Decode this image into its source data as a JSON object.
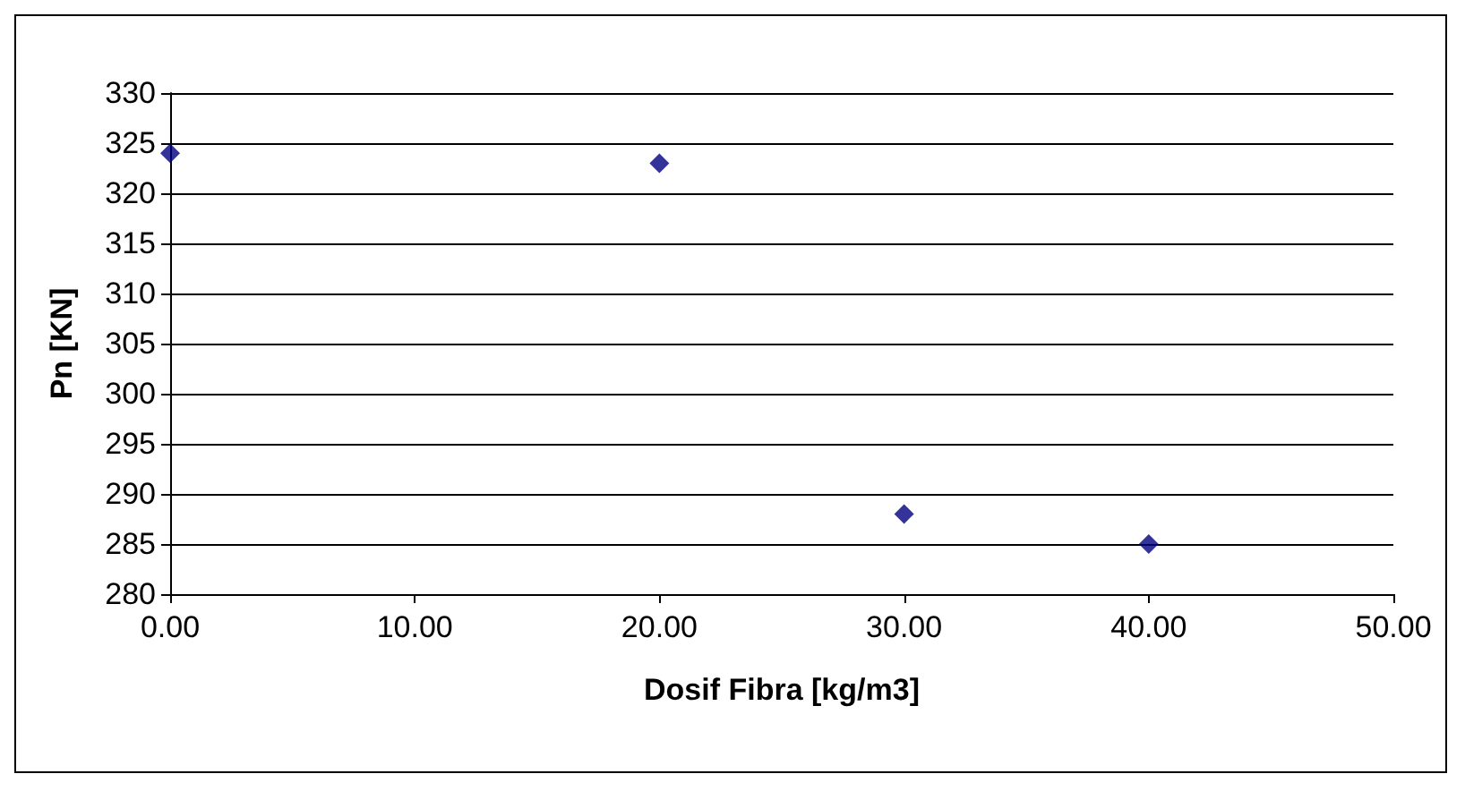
{
  "chart_data": {
    "type": "scatter",
    "xlabel": "Dosif Fibra [kg/m3]",
    "ylabel": "Pn [KN]",
    "x": [
      0,
      20,
      30,
      40
    ],
    "series": [
      {
        "color": "#000080",
        "values": [
          324,
          323,
          288,
          285
        ]
      }
    ],
    "xlim": [
      0,
      50
    ],
    "xticks": [
      {
        "value": 0,
        "label": "0.00"
      },
      {
        "value": 10,
        "label": "10.00"
      },
      {
        "value": 20,
        "label": "20.00"
      },
      {
        "value": 30,
        "label": "30.00"
      },
      {
        "value": 40,
        "label": "40.00"
      },
      {
        "value": 50,
        "label": "50.00"
      }
    ],
    "ylim": [
      280,
      330
    ],
    "yticks": [
      280,
      285,
      290,
      295,
      300,
      305,
      310,
      315,
      320,
      325,
      330
    ],
    "grid": "y",
    "marker": "diamond"
  }
}
